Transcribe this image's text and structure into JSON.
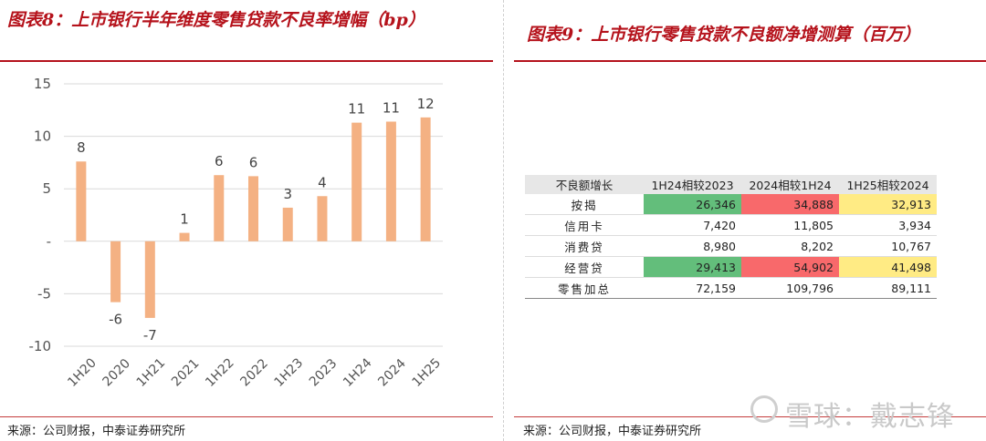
{
  "left": {
    "title": "图表8：上市银行半年维度零售贷款不良率增幅（bp）",
    "source": "来源：公司财报，中泰证券研究所"
  },
  "right": {
    "title": "图表9：上市银行零售贷款不良额净增测算（百万）",
    "source": "来源：公司财报，中泰证券研究所",
    "table": {
      "headers": [
        "不良额增长",
        "1H24相较2023",
        "2024相较1H24",
        "1H25相较2024"
      ],
      "rows": [
        {
          "label": "按揭",
          "values": [
            "26,346",
            "34,888",
            "32,913"
          ],
          "colors": [
            "#63be7b",
            "#f8696b",
            "#ffeb84"
          ]
        },
        {
          "label": "信用卡",
          "values": [
            "7,420",
            "11,805",
            "3,934"
          ],
          "colors": [
            "",
            "",
            ""
          ]
        },
        {
          "label": "消费贷",
          "values": [
            "8,980",
            "8,202",
            "10,767"
          ],
          "colors": [
            "",
            "",
            ""
          ]
        },
        {
          "label": "经营贷",
          "values": [
            "29,413",
            "54,902",
            "41,498"
          ],
          "colors": [
            "#63be7b",
            "#f8696b",
            "#ffeb84"
          ]
        },
        {
          "label": "零售加总",
          "values": [
            "72,159",
            "109,796",
            "89,111"
          ],
          "colors": [
            "",
            "",
            ""
          ]
        }
      ]
    }
  },
  "watermark": "雪球：戴志锋",
  "chart_data": {
    "type": "bar",
    "categories": [
      "1H20",
      "2020",
      "1H21",
      "2021",
      "1H22",
      "2022",
      "1H23",
      "2023",
      "1H24",
      "2024",
      "1H25"
    ],
    "values": [
      7.6,
      -5.8,
      -7.3,
      0.8,
      6.3,
      6.2,
      3.2,
      4.3,
      11.3,
      11.4,
      11.8
    ],
    "data_labels": [
      "8",
      "-6",
      "-7",
      "1",
      "6",
      "6",
      "3",
      "4",
      "11",
      "11",
      "12"
    ],
    "y_ticks": [
      "15",
      "10",
      "5",
      "-",
      "-5",
      "-10"
    ],
    "y_tick_values": [
      15,
      10,
      5,
      0,
      -5,
      -10
    ],
    "ylim": [
      -10,
      15
    ],
    "bar_color": "#f4b183",
    "grid": true
  }
}
